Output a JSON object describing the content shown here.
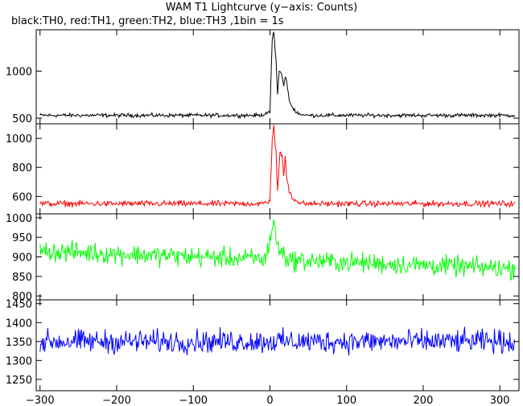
{
  "title": "WAM T1 Lightcurve (y−axis: Counts)",
  "subtitle": "black:TH0, red:TH1, green:TH2, blue:TH3 ,1bin = 1s",
  "chart_data": {
    "type": "line",
    "xlim": [
      -305,
      325
    ],
    "xticks": [
      -300,
      -200,
      -100,
      0,
      100,
      200,
      300
    ],
    "xtick_labels": [
      "−300",
      "−200",
      "−100",
      "0",
      "100",
      "200",
      "300"
    ],
    "bin_seconds": 1,
    "panels": [
      {
        "name": "TH0",
        "color": "#000000",
        "ylim": [
          440,
          1440
        ],
        "yticks": [
          500,
          1000
        ],
        "ytick_labels": [
          "500",
          "1000"
        ],
        "baseline": 530,
        "noise_amplitude": 30,
        "peak_profile": [
          [
            -10,
            530
          ],
          [
            0,
            560
          ],
          [
            3,
            1350
          ],
          [
            5,
            1420
          ],
          [
            8,
            1100
          ],
          [
            10,
            750
          ],
          [
            12,
            1000
          ],
          [
            15,
            980
          ],
          [
            18,
            850
          ],
          [
            20,
            950
          ],
          [
            22,
            880
          ],
          [
            25,
            700
          ],
          [
            28,
            620
          ],
          [
            35,
            560
          ],
          [
            45,
            530
          ]
        ]
      },
      {
        "name": "TH1",
        "color": "#ff0000",
        "ylim": [
          480,
          1100
        ],
        "yticks": [
          600,
          800,
          1000
        ],
        "ytick_labels": [
          "600",
          "800",
          "1000"
        ],
        "baseline": 550,
        "noise_amplitude": 30,
        "peak_profile": [
          [
            -10,
            550
          ],
          [
            0,
            570
          ],
          [
            3,
            980
          ],
          [
            5,
            1080
          ],
          [
            8,
            900
          ],
          [
            10,
            640
          ],
          [
            13,
            900
          ],
          [
            16,
            880
          ],
          [
            18,
            750
          ],
          [
            20,
            880
          ],
          [
            22,
            720
          ],
          [
            26,
            620
          ],
          [
            32,
            570
          ],
          [
            45,
            550
          ]
        ]
      },
      {
        "name": "TH2",
        "color": "#00ff00",
        "ylim": [
          790,
          1010
        ],
        "yticks": [
          800,
          850,
          900,
          950,
          1000
        ],
        "ytick_labels": [
          "800",
          "850",
          "900",
          "950",
          "1000"
        ],
        "baseline_start": 915,
        "baseline_end": 870,
        "noise_amplitude": 38,
        "peak_profile": [
          [
            -5,
            905
          ],
          [
            2,
            960
          ],
          [
            5,
            995
          ],
          [
            8,
            945
          ],
          [
            12,
            920
          ],
          [
            20,
            905
          ]
        ]
      },
      {
        "name": "TH3",
        "color": "#0000ff",
        "ylim": [
          1220,
          1460
        ],
        "yticks": [
          1250,
          1300,
          1350,
          1400,
          1450
        ],
        "ytick_labels": [
          "1250",
          "1300",
          "1350",
          "1400",
          "1450"
        ],
        "baseline": 1350,
        "noise_amplitude": 45,
        "peak_profile": []
      }
    ]
  }
}
